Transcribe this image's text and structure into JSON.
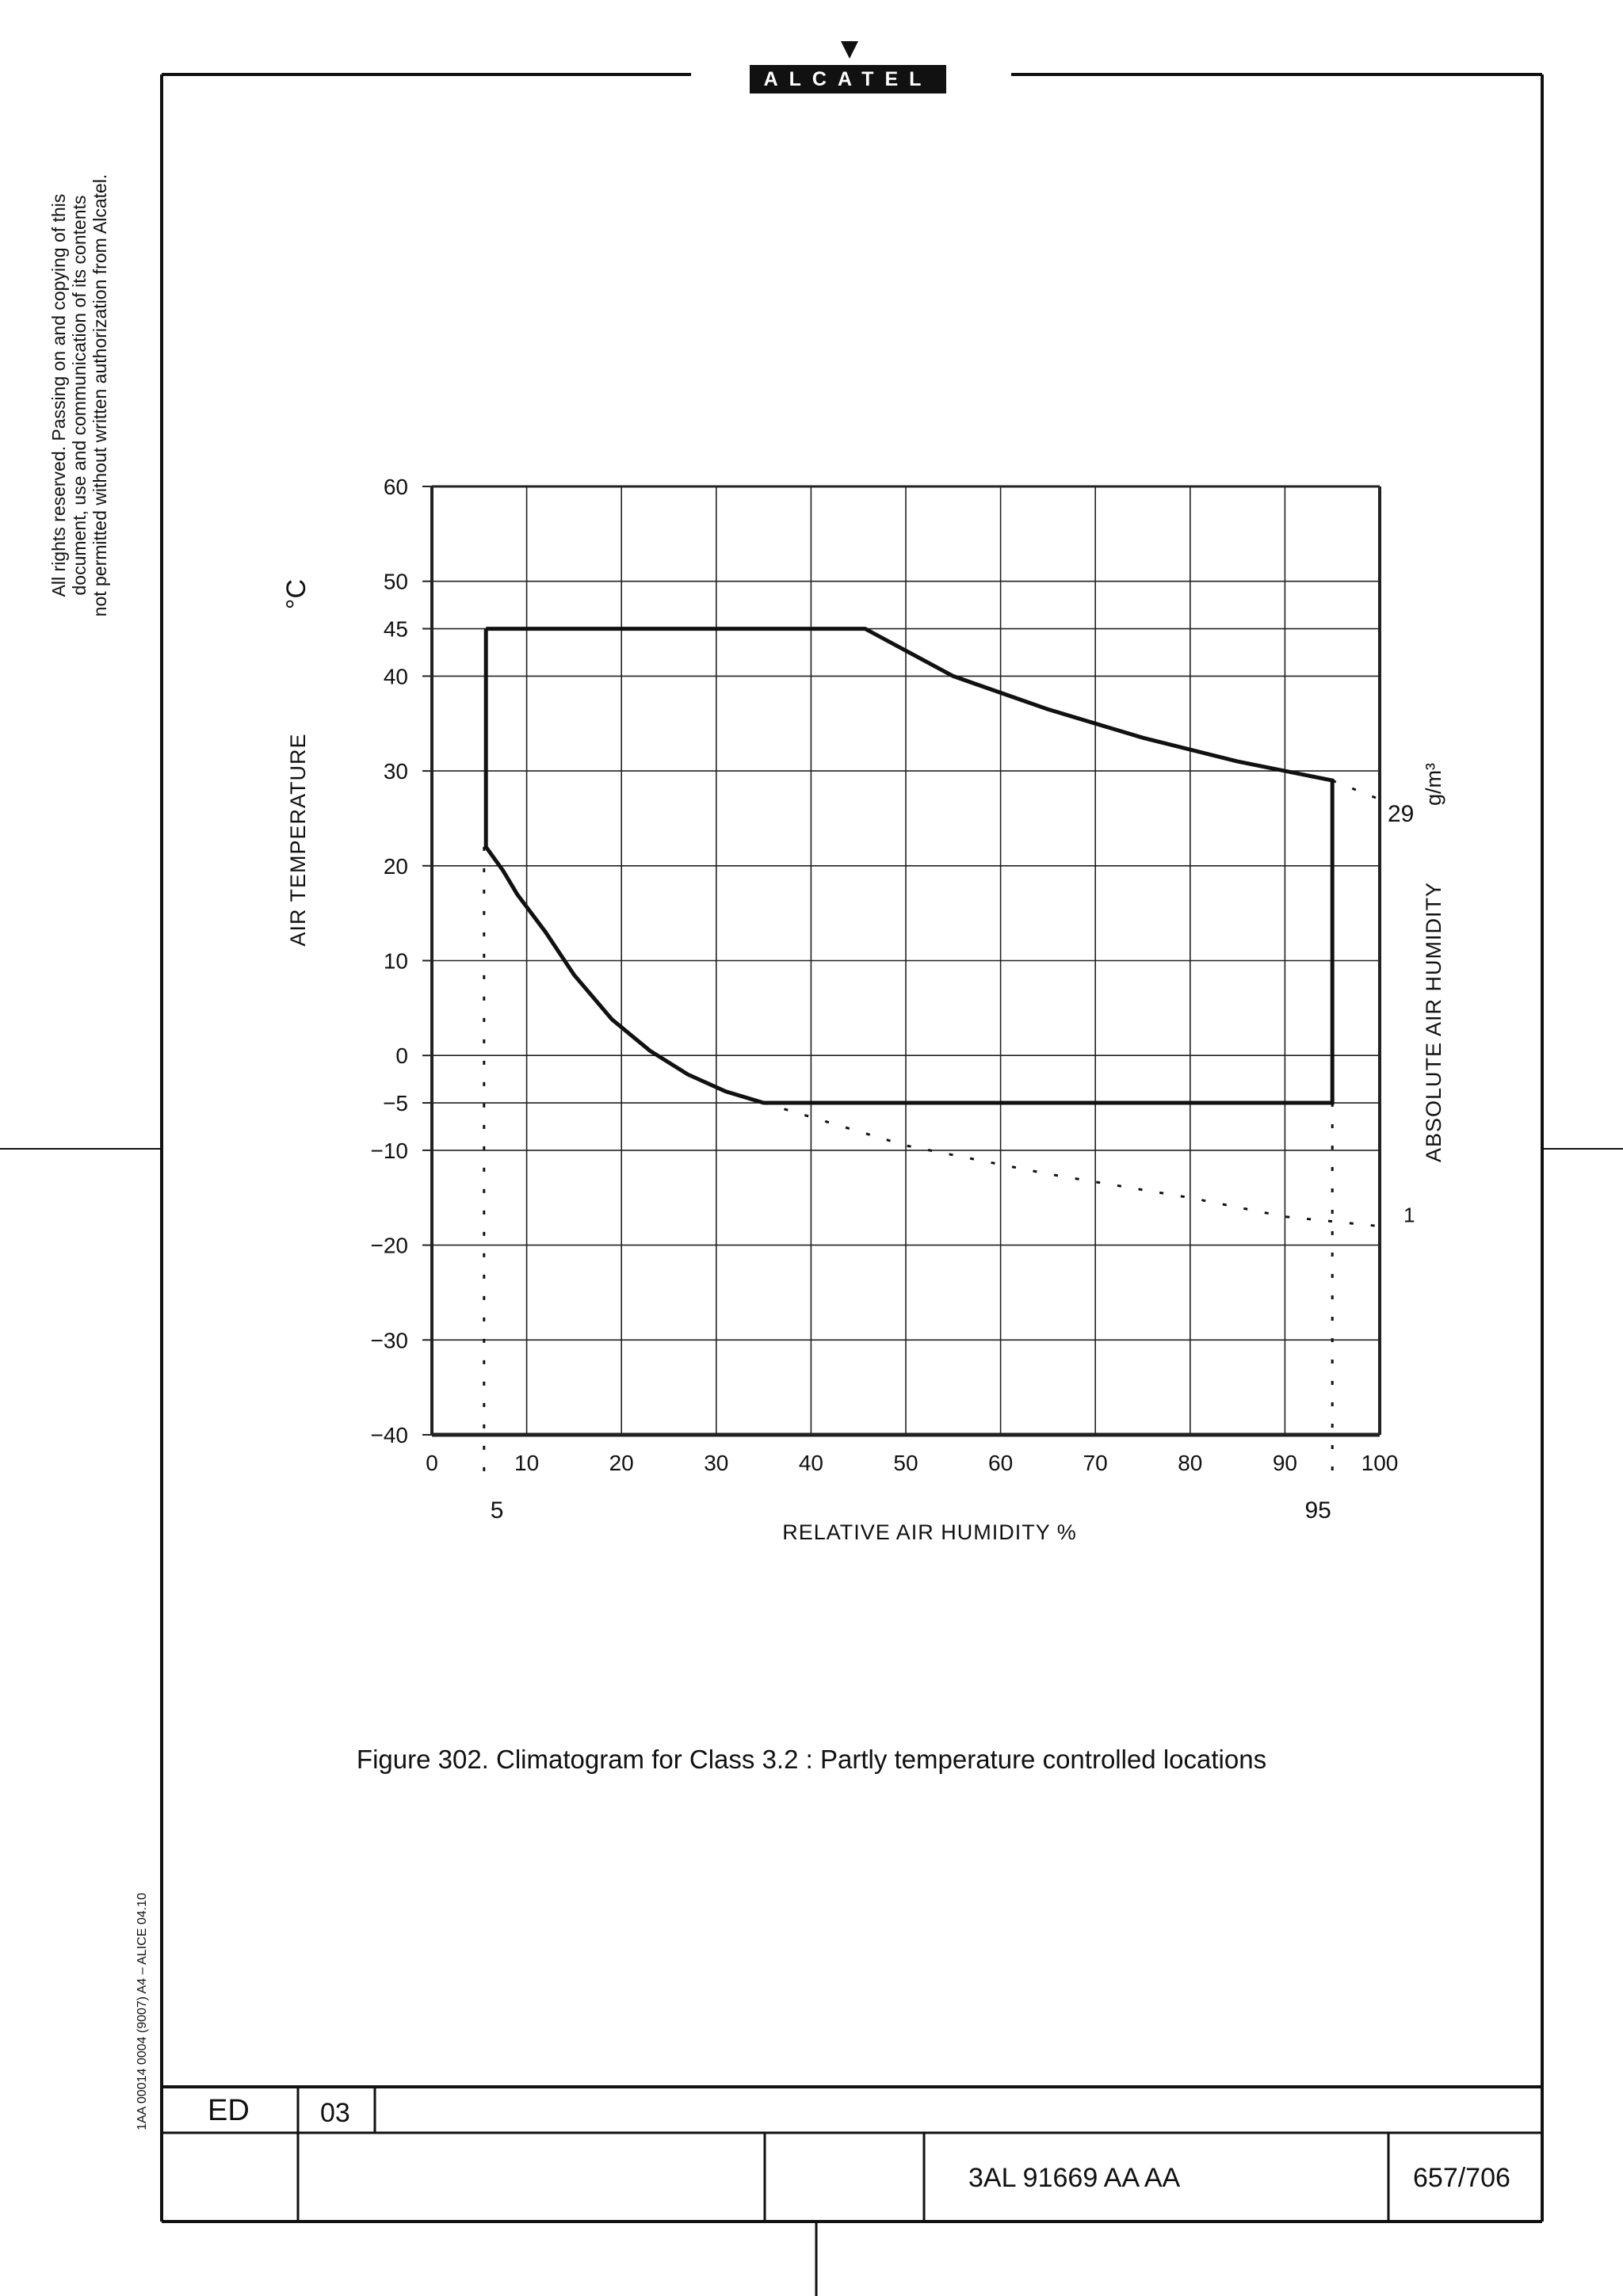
{
  "header": {
    "logo_text": "ALCATEL"
  },
  "margin": {
    "copyright_lines": [
      "All rights reserved. Passing on and copying of this",
      "document, use and communication of its contents",
      "not permitted without written authorization from Alcatel."
    ],
    "form_ref": "1AA 00014 0004 (9007) A4 – ALICE 04.10"
  },
  "chart_data": {
    "type": "line",
    "title": "",
    "xlabel": "RELATIVE  AIR  HUMIDITY  %",
    "ylabel": "AIR  TEMPERATURE",
    "ylabel_unit": "°C",
    "y2label": "ABSOLUTE  AIR  HUMIDITY",
    "y2label_unit": "g/m³",
    "xlim": [
      0,
      100
    ],
    "ylim": [
      -40,
      60
    ],
    "xticks": [
      0,
      10,
      20,
      30,
      40,
      50,
      60,
      70,
      80,
      90,
      100
    ],
    "yticks": [
      -40,
      -30,
      -20,
      -10,
      -5,
      0,
      10,
      20,
      30,
      40,
      45,
      50,
      60
    ],
    "ytick_labels": [
      "−40",
      "−30",
      "−20",
      "−10",
      "−5",
      "0",
      "10",
      "20",
      "30",
      "40",
      "45",
      "50",
      "60"
    ],
    "grid": true,
    "series": [
      {
        "style": "solid",
        "points": [
          [
            5.7,
            45
          ],
          [
            45.7,
            45
          ],
          [
            55,
            40
          ],
          [
            65,
            36.5
          ],
          [
            75,
            33.5
          ],
          [
            85,
            31
          ],
          [
            95,
            29
          ],
          [
            95,
            -5
          ],
          [
            35,
            -5
          ],
          [
            31,
            -3.8
          ],
          [
            27,
            -2
          ],
          [
            23,
            0.5
          ],
          [
            19,
            3.8
          ],
          [
            15,
            8.5
          ],
          [
            12,
            13
          ],
          [
            9,
            17
          ],
          [
            7.5,
            19.5
          ],
          [
            5.7,
            22
          ],
          [
            5.7,
            45
          ]
        ]
      },
      {
        "style": "dotted",
        "points": [
          [
            35,
            -5
          ],
          [
            50,
            -9.5
          ],
          [
            65,
            -12.5
          ],
          [
            80,
            -15
          ],
          [
            90,
            -17
          ],
          [
            100,
            -18
          ]
        ]
      },
      {
        "style": "dotted",
        "points": [
          [
            95,
            29
          ],
          [
            100,
            27
          ]
        ]
      },
      {
        "style": "dotted",
        "points": [
          [
            5.5,
            22
          ],
          [
            5.5,
            -45
          ]
        ]
      },
      {
        "style": "dotted",
        "points": [
          [
            95,
            -5
          ],
          [
            95,
            -45
          ]
        ]
      }
    ],
    "annotations": [
      {
        "text": "29",
        "at": [
          100,
          27
        ]
      },
      {
        "text": "1",
        "at": [
          100,
          -18
        ]
      },
      {
        "text": "5",
        "at": [
          5.5,
          -45
        ]
      },
      {
        "text": "95",
        "at": [
          95,
          -45
        ]
      }
    ]
  },
  "caption": "Figure 302. Climatogram for Class 3.2 : Partly temperature controlled locations",
  "title_block": {
    "ed_label": "ED",
    "edition": "03",
    "doc_number": "3AL 91669 AA  AA",
    "page": "657/706"
  }
}
